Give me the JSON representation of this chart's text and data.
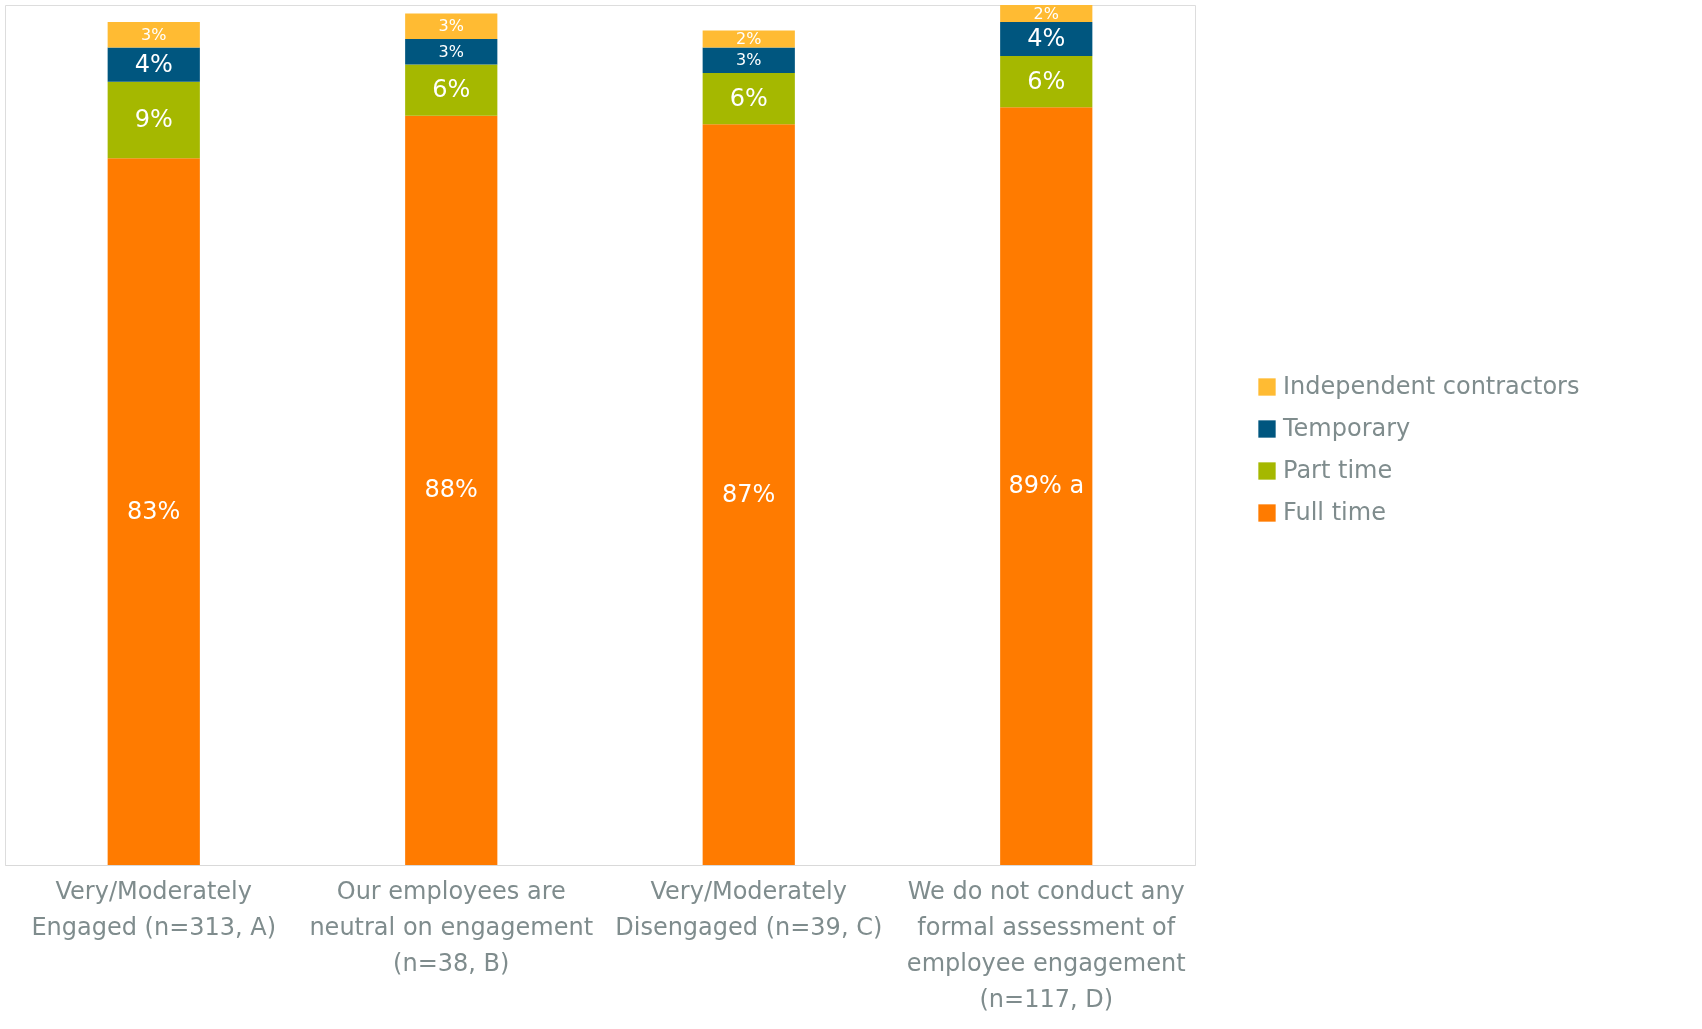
{
  "chart_data": {
    "type": "bar",
    "stacked": true,
    "categories": [
      "Very/Moderately Engaged (n=313, A)",
      "Our employees are neutral on engagement (n=38, B)",
      "Very/Moderately Disengaged (n=39, C)",
      "We do not conduct any formal assessment of employee engagement (n=117, D)"
    ],
    "series": [
      {
        "name": "Full time",
        "color": "#ff7b00",
        "values": [
          83,
          88,
          87,
          89
        ],
        "value_labels": [
          "83%",
          "88%",
          "87%",
          "89% a"
        ]
      },
      {
        "name": "Part time",
        "color": "#a5b800",
        "values": [
          9,
          6,
          6,
          6
        ],
        "value_labels": [
          "9%",
          "6%",
          "6%",
          "6%"
        ]
      },
      {
        "name": "Temporary",
        "color": "#00567f",
        "values": [
          4,
          3,
          3,
          4
        ],
        "value_labels": [
          "4%",
          "3%",
          "3%",
          "4%"
        ]
      },
      {
        "name": "Independent contractors",
        "color": "#ffbb33",
        "values": [
          3,
          3,
          2,
          2
        ],
        "value_labels": [
          "3%",
          "3%",
          "2%",
          "2%"
        ]
      }
    ],
    "legend": "right"
  }
}
